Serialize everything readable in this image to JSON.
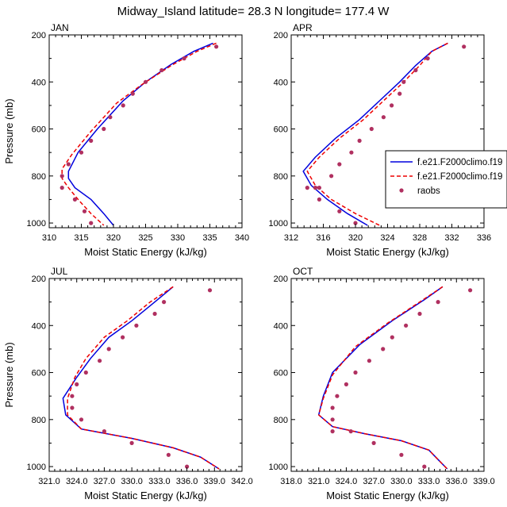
{
  "title": "Midway_Island  latitude= 28.3 N longitude= 177.4 W",
  "legend": {
    "entries": [
      {
        "label": "f.e21.F2000climo.f19",
        "color": "#0000dd",
        "style": "solid"
      },
      {
        "label": "f.e21.F2000climo.f19",
        "color": "#ee0000",
        "style": "dashed"
      },
      {
        "label": "raobs",
        "color": "#b03060",
        "style": "marker"
      }
    ]
  },
  "chart_data": [
    {
      "type": "line",
      "panel": "JAN",
      "title": "JAN",
      "xlabel": "Moist Static Energy (kJ/kg)",
      "ylabel": "Pressure (mb)",
      "xlim": [
        310,
        340
      ],
      "ylim": [
        1020,
        200
      ],
      "xticks": [
        310,
        315,
        320,
        325,
        330,
        335,
        340
      ],
      "xticklabels": [
        "310",
        "315",
        "320",
        "325",
        "330",
        "335",
        "340"
      ],
      "yticks": [
        200,
        400,
        600,
        800,
        1000
      ],
      "yticklabels": [
        "200",
        "400",
        "600",
        "800",
        "1000"
      ],
      "series": [
        {
          "name": "f.e21.F2000climo.f19",
          "style": "solid",
          "color": "#0000dd",
          "x": [
            335.5,
            332.5,
            329.0,
            325.0,
            321.5,
            317.5,
            314.5,
            313.0,
            313.0,
            314.0,
            316.5,
            318.5,
            320.0
          ],
          "y": [
            235,
            270,
            325,
            400,
            480,
            600,
            700,
            780,
            810,
            850,
            900,
            960,
            1010
          ]
        },
        {
          "name": "f.e21.F2000climo.f19",
          "style": "dashed",
          "color": "#ee0000",
          "x": [
            336.0,
            333.0,
            329.0,
            324.5,
            320.5,
            316.5,
            313.5,
            312.0,
            312.0,
            313.0,
            314.5,
            316.5,
            318.5
          ],
          "y": [
            235,
            270,
            330,
            410,
            490,
            610,
            710,
            770,
            810,
            850,
            900,
            960,
            1010
          ]
        }
      ],
      "markers": {
        "name": "raobs",
        "x": [
          336.0,
          331.0,
          327.5,
          325.0,
          323.0,
          321.5,
          319.5,
          318.5,
          316.5,
          315.0,
          313.0,
          312.0,
          312.0,
          314.0,
          315.5,
          316.5
        ],
        "y": [
          250,
          300,
          350,
          400,
          450,
          500,
          550,
          600,
          650,
          700,
          750,
          800,
          850,
          900,
          950,
          1000
        ]
      }
    },
    {
      "type": "line",
      "panel": "APR",
      "title": "APR",
      "xlabel": "Moist Static Energy (kJ/kg)",
      "ylabel": "Pressure (mb)",
      "xlim": [
        312,
        336
      ],
      "ylim": [
        1020,
        200
      ],
      "xticks": [
        312,
        316,
        320,
        324,
        328,
        332,
        336
      ],
      "xticklabels": [
        "312",
        "316",
        "320",
        "324",
        "328",
        "332",
        "336"
      ],
      "yticks": [
        200,
        400,
        600,
        800,
        1000
      ],
      "yticklabels": [
        "200",
        "400",
        "600",
        "800",
        "1000"
      ],
      "series": [
        {
          "name": "f.e21.F2000climo.f19",
          "style": "solid",
          "color": "#0000dd",
          "x": [
            331.5,
            329.5,
            327.5,
            325.5,
            323.0,
            320.5,
            317.5,
            315.0,
            313.5,
            314.5,
            316.5,
            319.0,
            321.5
          ],
          "y": [
            235,
            270,
            330,
            400,
            480,
            560,
            640,
            720,
            780,
            840,
            900,
            960,
            1010
          ]
        },
        {
          "name": "f.e21.F2000climo.f19",
          "style": "dashed",
          "color": "#ee0000",
          "x": [
            331.5,
            329.5,
            328.0,
            326.0,
            323.5,
            321.0,
            318.0,
            315.5,
            314.0,
            315.0,
            317.0,
            320.0,
            323.0
          ],
          "y": [
            235,
            270,
            330,
            400,
            480,
            560,
            640,
            720,
            780,
            840,
            900,
            960,
            1010
          ]
        }
      ],
      "markers": {
        "name": "raobs",
        "x": [
          333.5,
          329.0,
          327.5,
          326.0,
          325.5,
          324.5,
          323.5,
          322.0,
          320.5,
          319.5,
          318.0,
          317.0,
          315.5,
          315.0,
          314.0,
          315.5,
          318.0,
          320.0
        ],
        "y": [
          250,
          300,
          350,
          400,
          450,
          500,
          550,
          600,
          650,
          700,
          750,
          800,
          850,
          850,
          850,
          900,
          950,
          1000
        ]
      }
    },
    {
      "type": "line",
      "panel": "JUL",
      "title": "JUL",
      "xlabel": "Moist Static Energy (kJ/kg)",
      "ylabel": "Pressure (mb)",
      "xlim": [
        321,
        342
      ],
      "ylim": [
        1020,
        200
      ],
      "xticks": [
        321,
        324,
        327,
        330,
        333,
        336,
        339,
        342
      ],
      "xticklabels": [
        "321.0",
        "324.0",
        "327.0",
        "330.0",
        "333.0",
        "336.0",
        "339.0",
        "342.0"
      ],
      "yticks": [
        200,
        400,
        600,
        800,
        1000
      ],
      "yticklabels": [
        "200",
        "400",
        "600",
        "800",
        "1000"
      ],
      "series": [
        {
          "name": "f.e21.F2000climo.f19",
          "style": "solid",
          "color": "#0000dd",
          "x": [
            334.5,
            332.5,
            330.0,
            327.5,
            325.5,
            324.0,
            322.5,
            322.8,
            324.5,
            330.0,
            334.5,
            337.5,
            339.5
          ],
          "y": [
            235,
            300,
            380,
            450,
            540,
            620,
            710,
            780,
            840,
            880,
            920,
            960,
            1010
          ]
        },
        {
          "name": "f.e21.F2000climo.f19",
          "style": "dashed",
          "color": "#ee0000",
          "x": [
            334.5,
            332.0,
            329.5,
            327.0,
            325.0,
            323.8,
            323.0,
            323.0,
            324.5,
            330.0,
            334.5,
            337.5,
            339.5
          ],
          "y": [
            235,
            300,
            380,
            450,
            540,
            620,
            710,
            780,
            840,
            880,
            920,
            960,
            1010
          ]
        }
      ],
      "markers": {
        "name": "raobs",
        "x": [
          338.5,
          333.5,
          332.5,
          330.5,
          329.0,
          327.5,
          326.5,
          325.0,
          324.0,
          323.5,
          323.5,
          324.5,
          327.0,
          330.0,
          334.0,
          336.0
        ],
        "y": [
          250,
          300,
          350,
          400,
          450,
          500,
          550,
          600,
          650,
          700,
          750,
          800,
          850,
          900,
          950,
          1000
        ]
      }
    },
    {
      "type": "line",
      "panel": "OCT",
      "title": "OCT",
      "xlabel": "Moist Static Energy (kJ/kg)",
      "ylabel": "Pressure (mb)",
      "xlim": [
        318,
        339
      ],
      "ylim": [
        1020,
        200
      ],
      "xticks": [
        318,
        321,
        324,
        327,
        330,
        333,
        336,
        339
      ],
      "xticklabels": [
        "318.0",
        "321.0",
        "324.0",
        "327.0",
        "330.0",
        "333.0",
        "336.0",
        "339.0"
      ],
      "yticks": [
        200,
        400,
        600,
        800,
        1000
      ],
      "yticklabels": [
        "200",
        "400",
        "600",
        "800",
        "1000"
      ],
      "series": [
        {
          "name": "f.e21.F2000climo.f19",
          "style": "solid",
          "color": "#0000dd",
          "x": [
            334.5,
            332.5,
            329.0,
            325.5,
            322.5,
            321.5,
            321.0,
            322.5,
            326.0,
            330.0,
            333.0,
            334.0,
            335.0
          ],
          "y": [
            235,
            290,
            380,
            480,
            600,
            700,
            780,
            830,
            860,
            890,
            930,
            970,
            1010
          ]
        },
        {
          "name": "f.e21.F2000climo.f19",
          "style": "dashed",
          "color": "#ee0000",
          "x": [
            334.5,
            332.0,
            328.5,
            325.0,
            322.5,
            321.5,
            321.0,
            322.5,
            326.0,
            330.0,
            333.0,
            334.0,
            335.0
          ],
          "y": [
            235,
            300,
            390,
            490,
            610,
            710,
            780,
            830,
            860,
            890,
            930,
            970,
            1010
          ]
        }
      ],
      "markers": {
        "name": "raobs",
        "x": [
          337.5,
          334.0,
          332.0,
          330.5,
          329.0,
          328.0,
          326.5,
          325.0,
          324.0,
          323.0,
          322.5,
          322.5,
          322.5,
          324.5,
          327.0,
          330.0,
          332.5
        ],
        "y": [
          250,
          300,
          350,
          400,
          450,
          500,
          550,
          600,
          650,
          700,
          750,
          800,
          850,
          850,
          900,
          950,
          1000
        ]
      }
    }
  ]
}
